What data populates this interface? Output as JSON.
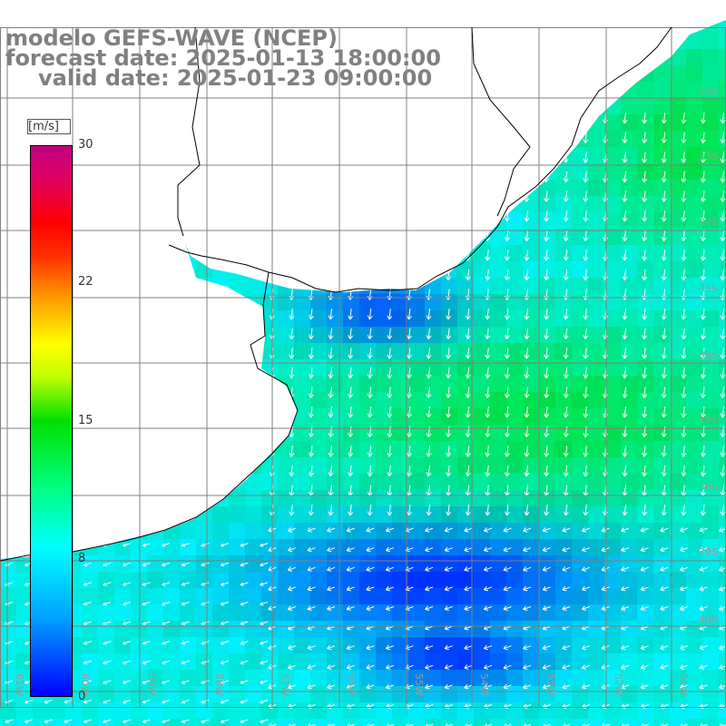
{
  "title": {
    "line1": "modelo GEFS-WAVE (NCEP)",
    "line2": "forecast date: 2025-01-13 18:00:00",
    "line3": "valid date: 2025-01-23 09:00:00"
  },
  "colorbar": {
    "units": "[m/s]",
    "ticks": [
      "30",
      "22",
      "15",
      "8",
      "0"
    ],
    "tick_values": [
      30,
      22,
      15,
      8,
      0
    ],
    "colors": [
      "#0000ff",
      "#00ffff",
      "#00e000",
      "#ffff00",
      "#ff0000",
      "#c00080"
    ]
  },
  "map": {
    "lat_labels": [
      "32S",
      "33S",
      "34S",
      "35S",
      "36S",
      "37S",
      "38S",
      "39S",
      "40S"
    ],
    "lon_labels": [
      "61W",
      "60W",
      "59W",
      "58W",
      "57W",
      "56W",
      "55W",
      "54W",
      "53W",
      "52W",
      "51W"
    ],
    "colors": {
      "land": "#ffffff",
      "grid": "#808080",
      "coast": "#000000",
      "arrow": "#ffffff"
    }
  }
}
